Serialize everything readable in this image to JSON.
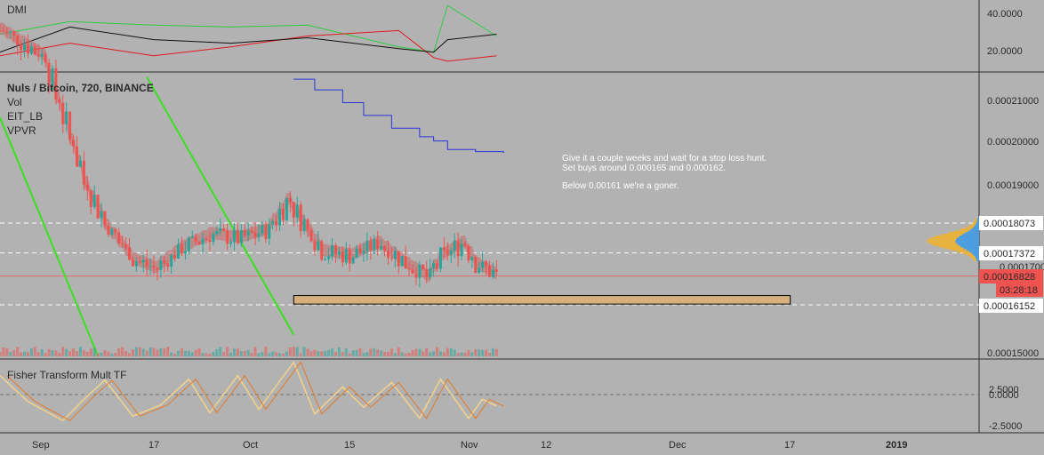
{
  "colors": {
    "background": "#b2b2b2",
    "up": "#26a69a",
    "down": "#ef5350",
    "dmi_plus": "#2ecc40",
    "dmi_minus": "#e0191f",
    "adx": "#111111",
    "trendline": "#39e01f",
    "blue_line": "#2b35d8",
    "support_box": "#d6b07d",
    "volume_profile_up": "#4a9de0",
    "volume_profile_down": "#e9b23c",
    "fisher_main": "#e37a28",
    "fisher_signal": "#f1d08a",
    "price_tag": "#ef5350"
  },
  "dmi_panel": {
    "title": "DMI",
    "y_ticks": [
      "40.0000",
      "20.0000"
    ]
  },
  "main_panel": {
    "title": "Nuls / Bitcoin, 720, BINANCE",
    "indicators": [
      "Vol",
      "EIT_LB",
      "VPVR"
    ],
    "annotation_lines": [
      "Give it a couple weeks and wait for a stop loss hunt.",
      "Set buys around 0.000165 and 0.000162.",
      "",
      "Below 0.00161 we're a goner."
    ],
    "y_ticks": [
      "0.00021000",
      "0.00020000",
      "0.00019000",
      "0.00015000"
    ],
    "price_labels": [
      {
        "text": "0.00018073",
        "style": "white"
      },
      {
        "text": "0.00017372",
        "style": "white"
      },
      {
        "text": "0.00016828",
        "style": "red"
      },
      {
        "text": "03:28:18",
        "style": "red"
      },
      {
        "text": "0.00016152",
        "style": "white"
      }
    ],
    "hidden_tick": "0.00017000"
  },
  "fisher_panel": {
    "title": "Fisher Transform Mult TF",
    "y_ticks": [
      "2.5000",
      "0.0000",
      "-2.5000"
    ]
  },
  "x_axis": {
    "ticks": [
      "Sep",
      "17",
      "Oct",
      "15",
      "Nov",
      "12",
      "Dec",
      "17",
      "2019"
    ]
  },
  "chart_data": {
    "type": "candlestick",
    "symbol": "Nuls / Bitcoin",
    "interval": "720",
    "exchange": "BINANCE",
    "ylim": [
      0.000149,
      0.000216
    ],
    "dmi_ylim": [
      10,
      48
    ],
    "fisher_ylim": [
      -3.2,
      3.2
    ],
    "date_range": [
      "2018-08-29",
      "2019-01-16"
    ],
    "last_date": "2018-11-08",
    "key_levels": [
      0.00018073,
      0.00017372,
      0.00016828,
      0.00016152
    ],
    "current_price": 0.00016828,
    "support_zone": {
      "from": "2018-10-10",
      "to": "2018-12-20",
      "low": 0.0001617,
      "high": 0.0001637
    },
    "trendlines": [
      {
        "from": [
          "2018-08-29",
          0.0002055
        ],
        "to": [
          "2018-09-12",
          0.0001495
        ]
      },
      {
        "from": [
          "2018-09-19",
          0.000215
        ],
        "to": [
          "2018-10-10",
          0.0001545
        ]
      }
    ],
    "blue_steps": [
      [
        "2018-10-10",
        0.0002145
      ],
      [
        "2018-10-13",
        0.000212
      ],
      [
        "2018-10-17",
        0.000209
      ],
      [
        "2018-10-20",
        0.000206
      ],
      [
        "2018-10-24",
        0.000203
      ],
      [
        "2018-10-28",
        0.000201
      ],
      [
        "2018-10-30",
        0.0002
      ],
      [
        "2018-11-01",
        0.000198
      ],
      [
        "2018-11-05",
        0.0001975
      ],
      [
        "2018-11-09",
        0.0001972
      ]
    ],
    "ohlc_keypoints": [
      [
        "2018-08-29",
        0.000226
      ],
      [
        "2018-09-04",
        0.00022
      ],
      [
        "2018-09-07",
        0.000205
      ],
      [
        "2018-09-10",
        0.00019
      ],
      [
        "2018-09-13",
        0.00018
      ],
      [
        "2018-09-17",
        0.000172
      ],
      [
        "2018-09-20",
        0.00017
      ],
      [
        "2018-09-24",
        0.000175
      ],
      [
        "2018-09-28",
        0.000178
      ],
      [
        "2018-10-02",
        0.000177
      ],
      [
        "2018-10-06",
        0.000179
      ],
      [
        "2018-10-09",
        0.000186
      ],
      [
        "2018-10-11",
        0.000181
      ],
      [
        "2018-10-14",
        0.000174
      ],
      [
        "2018-10-18",
        0.000173
      ],
      [
        "2018-10-22",
        0.000176
      ],
      [
        "2018-10-26",
        0.000171
      ],
      [
        "2018-10-29",
        0.000168
      ],
      [
        "2018-10-31",
        0.000173
      ],
      [
        "2018-11-03",
        0.000176
      ],
      [
        "2018-11-05",
        0.000171
      ],
      [
        "2018-11-08",
        0.0001683
      ]
    ],
    "dmi": {
      "plus": [
        [
          "2018-08-29",
          30
        ],
        [
          "2018-09-08",
          37
        ],
        [
          "2018-09-20",
          35
        ],
        [
          "2018-10-01",
          34
        ],
        [
          "2018-10-12",
          35
        ],
        [
          "2018-10-25",
          23
        ],
        [
          "2018-10-30",
          20
        ],
        [
          "2018-11-01",
          46
        ],
        [
          "2018-11-08",
          29
        ]
      ],
      "minus": [
        [
          "2018-08-29",
          18
        ],
        [
          "2018-09-08",
          25
        ],
        [
          "2018-09-20",
          18
        ],
        [
          "2018-10-01",
          23
        ],
        [
          "2018-10-12",
          29
        ],
        [
          "2018-10-25",
          32
        ],
        [
          "2018-10-30",
          17
        ],
        [
          "2018-11-01",
          15
        ],
        [
          "2018-11-08",
          18
        ]
      ],
      "adx": [
        [
          "2018-08-29",
          20
        ],
        [
          "2018-09-08",
          34
        ],
        [
          "2018-09-20",
          27
        ],
        [
          "2018-10-01",
          25
        ],
        [
          "2018-10-12",
          28
        ],
        [
          "2018-10-25",
          22
        ],
        [
          "2018-10-30",
          20
        ],
        [
          "2018-11-01",
          27
        ],
        [
          "2018-11-08",
          30
        ]
      ]
    },
    "fisher": [
      [
        "2018-08-29",
        1.8
      ],
      [
        "2018-09-02",
        -0.5
      ],
      [
        "2018-09-07",
        -2.2
      ],
      [
        "2018-09-10",
        -0.3
      ],
      [
        "2018-09-13",
        1.4
      ],
      [
        "2018-09-17",
        -1.8
      ],
      [
        "2018-09-21",
        -0.8
      ],
      [
        "2018-09-25",
        1.5
      ],
      [
        "2018-09-28",
        -1.5
      ],
      [
        "2018-10-02",
        1.8
      ],
      [
        "2018-10-05",
        -1.2
      ],
      [
        "2018-10-10",
        3.0
      ],
      [
        "2018-10-13",
        -1.6
      ],
      [
        "2018-10-17",
        0.8
      ],
      [
        "2018-10-20",
        -1.0
      ],
      [
        "2018-10-24",
        1.2
      ],
      [
        "2018-10-28",
        -2.0
      ],
      [
        "2018-10-31",
        1.5
      ],
      [
        "2018-11-04",
        -2.0
      ],
      [
        "2018-11-06",
        -0.3
      ],
      [
        "2018-11-08",
        -0.9
      ]
    ]
  }
}
